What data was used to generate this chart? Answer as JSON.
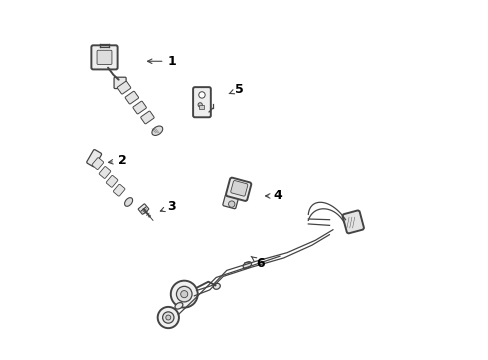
{
  "bg_color": "#ffffff",
  "line_color": "#444444",
  "text_color": "#000000",
  "label_fontsize": 9,
  "fig_width": 4.89,
  "fig_height": 3.6,
  "dpi": 100,
  "label_info": [
    [
      1,
      0.295,
      0.835,
      0.215,
      0.835
    ],
    [
      2,
      0.155,
      0.555,
      0.105,
      0.548
    ],
    [
      3,
      0.295,
      0.425,
      0.252,
      0.408
    ],
    [
      4,
      0.595,
      0.455,
      0.548,
      0.455
    ],
    [
      5,
      0.485,
      0.755,
      0.455,
      0.743
    ],
    [
      6,
      0.545,
      0.265,
      0.518,
      0.285
    ]
  ]
}
